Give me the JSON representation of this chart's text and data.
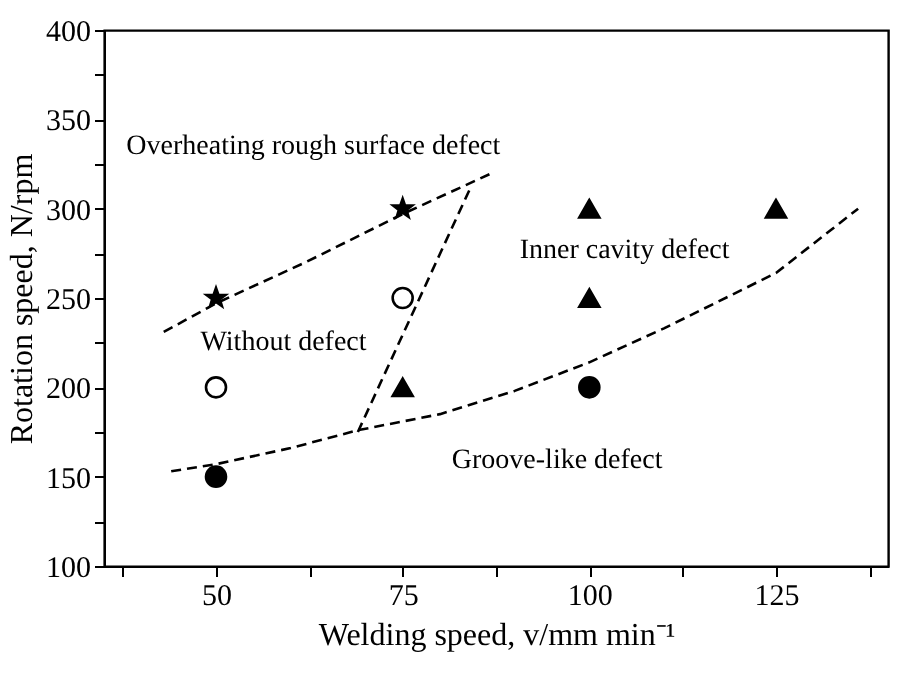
{
  "chart_data": {
    "type": "scatter",
    "xlabel": "Welding speed, v/mm min⁻¹",
    "ylabel": "Rotation speed, N/rpm",
    "xlim": [
      35,
      140
    ],
    "ylim": [
      100,
      400
    ],
    "xticks": [
      {
        "value": 37.5,
        "label": null
      },
      50,
      {
        "value": 62.5,
        "label": null
      },
      75,
      {
        "value": 87.5,
        "label": null
      },
      100,
      {
        "value": 112.5,
        "label": null
      },
      125,
      {
        "value": 137.5,
        "label": null
      }
    ],
    "yticks": [
      100,
      {
        "value": 125,
        "label": null
      },
      150,
      {
        "value": 175,
        "label": null
      },
      200,
      {
        "value": 225,
        "label": null
      },
      250,
      {
        "value": 275,
        "label": null
      },
      300,
      {
        "value": 325,
        "label": null
      },
      350,
      {
        "value": 375,
        "label": null
      },
      400
    ],
    "series": [
      {
        "marker": "star",
        "color": "#000000",
        "x": [
          50,
          75
        ],
        "values": [
          250,
          300
        ]
      },
      {
        "marker": "circle",
        "color": "#ffffff",
        "x": [
          50,
          75
        ],
        "values": [
          200,
          250
        ]
      },
      {
        "marker": "triangle",
        "color": "#000000",
        "x": [
          75,
          100,
          100,
          125
        ],
        "values": [
          200,
          300,
          250,
          300
        ]
      },
      {
        "marker": "circle",
        "color": "#000000",
        "x": [
          50,
          100
        ],
        "values": [
          150,
          200
        ]
      },
      {
        "type": "line",
        "line_style": "dashed",
        "color": "#000000",
        "x": [
          43,
          50,
          62,
          75,
          87
        ],
        "values": [
          231,
          247,
          270,
          297,
          320
        ]
      },
      {
        "type": "line",
        "line_style": "dashed",
        "color": "#000000",
        "x": [
          69,
          84
        ],
        "values": [
          175,
          311
        ]
      },
      {
        "type": "line",
        "line_style": "dashed",
        "color": "#000000",
        "x": [
          44,
          50,
          60,
          69,
          80,
          90,
          100,
          110,
          125,
          136
        ],
        "values": [
          153,
          157,
          166,
          176,
          185,
          198,
          214,
          233,
          264,
          300
        ]
      }
    ],
    "annotations": [
      "Overheating rough surface defect",
      "Inner cavity defect",
      "Without defect",
      "Groove-like defect"
    ]
  }
}
